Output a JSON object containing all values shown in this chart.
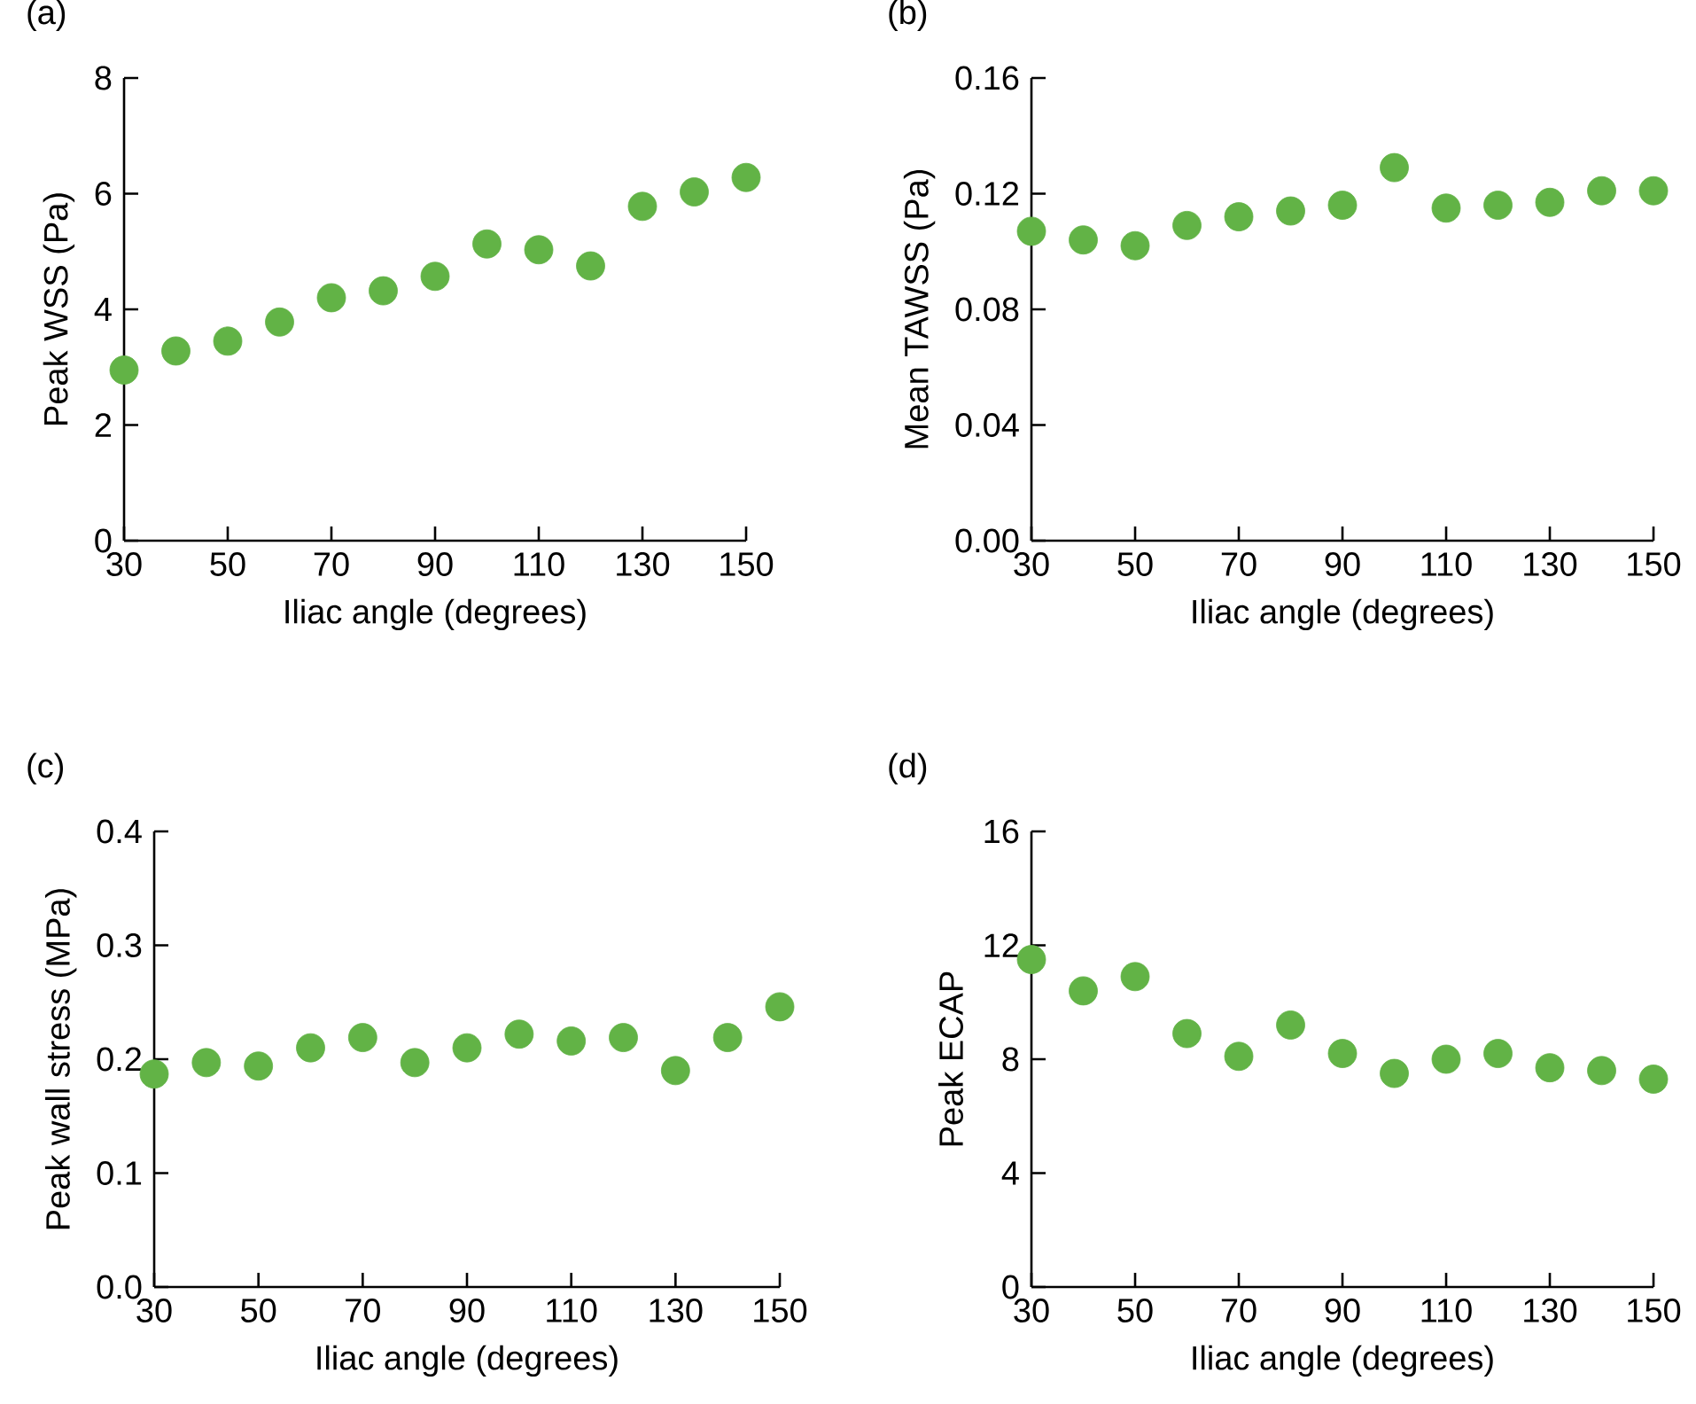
{
  "chart_data": [
    {
      "type": "scatter",
      "title": "(a)",
      "xlabel": "Iliac angle (degrees)",
      "ylabel": "Peak WSS (Pa)",
      "marker": "circle",
      "color": "#62b346",
      "x": [
        30,
        40,
        50,
        60,
        70,
        80,
        90,
        100,
        110,
        120,
        130,
        140,
        150
      ],
      "values": [
        2.95,
        3.28,
        3.45,
        3.78,
        4.2,
        4.32,
        4.57,
        5.13,
        5.03,
        4.75,
        5.78,
        6.03,
        6.28
      ],
      "xlim": [
        30,
        150
      ],
      "ylim": [
        0,
        8
      ],
      "xticks": [
        30,
        50,
        70,
        90,
        110,
        130,
        150
      ],
      "yticks": [
        0,
        2,
        4,
        6,
        8
      ]
    },
    {
      "type": "scatter",
      "title": "(b)",
      "xlabel": "Iliac angle (degrees)",
      "ylabel": "Mean TAWSS (Pa)",
      "marker": "circle",
      "color": "#62b346",
      "x": [
        30,
        40,
        50,
        60,
        70,
        80,
        90,
        100,
        110,
        120,
        130,
        140,
        150
      ],
      "values": [
        0.107,
        0.104,
        0.102,
        0.109,
        0.112,
        0.114,
        0.116,
        0.129,
        0.115,
        0.116,
        0.117,
        0.121,
        0.121
      ],
      "xlim": [
        30,
        150
      ],
      "ylim": [
        0,
        0.16
      ],
      "xticks": [
        30,
        50,
        70,
        90,
        110,
        130,
        150
      ],
      "yticks": [
        {
          "value": 0,
          "label": "0.00"
        },
        0.04,
        0.08,
        0.12,
        0.16
      ]
    },
    {
      "type": "scatter",
      "title": "(c)",
      "xlabel": "Iliac angle (degrees)",
      "ylabel": "Peak wall stress (MPa)",
      "marker": "circle",
      "color": "#62b346",
      "x": [
        30,
        40,
        50,
        60,
        70,
        80,
        90,
        100,
        110,
        120,
        130,
        140,
        150
      ],
      "values": [
        0.187,
        0.197,
        0.194,
        0.21,
        0.219,
        0.197,
        0.21,
        0.222,
        0.216,
        0.219,
        0.19,
        0.219,
        0.246
      ],
      "xlim": [
        30,
        150
      ],
      "ylim": [
        0,
        0.4
      ],
      "xticks": [
        30,
        50,
        70,
        90,
        110,
        130,
        150
      ],
      "yticks": [
        {
          "value": 0,
          "label": "0.0"
        },
        0.1,
        0.2,
        0.3,
        0.4
      ]
    },
    {
      "type": "scatter",
      "title": "(d)",
      "xlabel": "Iliac angle (degrees)",
      "ylabel": "Peak ECAP",
      "marker": "circle",
      "color": "#62b346",
      "x": [
        30,
        40,
        50,
        60,
        70,
        80,
        90,
        100,
        110,
        120,
        130,
        140,
        150
      ],
      "values": [
        11.5,
        10.4,
        10.9,
        8.9,
        8.1,
        9.2,
        8.2,
        7.5,
        8.0,
        8.2,
        7.7,
        7.6,
        7.3
      ],
      "xlim": [
        30,
        150
      ],
      "ylim": [
        0,
        16
      ],
      "xticks": [
        30,
        50,
        70,
        90,
        110,
        130,
        150
      ],
      "yticks": [
        0,
        4,
        8,
        12,
        16
      ]
    }
  ]
}
